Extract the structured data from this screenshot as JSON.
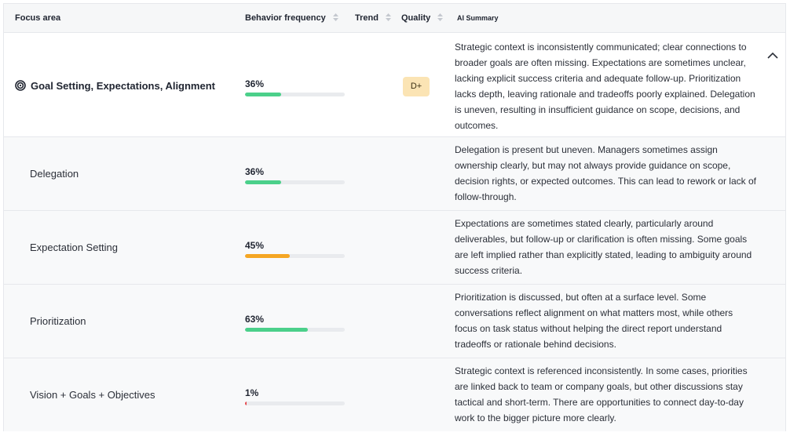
{
  "header": {
    "focus_area": "Focus area",
    "behavior_frequency": "Behavior frequency",
    "trend": "Trend",
    "quality": "Quality",
    "ai_summary": "AI Summary"
  },
  "colors": {
    "green": "#4bd08a",
    "orange": "#f5a623",
    "red": "#e5484d",
    "badge_bg": "#fbe4b4"
  },
  "rows": [
    {
      "label": "Goal Setting, Expectations, Alignment",
      "icon": "target-icon",
      "frequency": "36%",
      "fraction": 0.36,
      "bar_color": "#4bd08a",
      "quality": "D+",
      "summary": "Strategic context is inconsistently communicated; clear connections to broader goals are often missing. Expectations are sometimes unclear, lacking explicit success criteria and adequate follow-up. Prioritization lacks depth, leaving rationale and tradeoffs poorly explained. Delegation is uneven, resulting in insufficient guidance on scope, decisions, and outcomes."
    },
    {
      "label": "Delegation",
      "frequency": "36%",
      "fraction": 0.36,
      "bar_color": "#4bd08a",
      "summary": "Delegation is present but uneven. Managers sometimes assign ownership clearly, but may not always provide guidance on scope, decision rights, or expected outcomes. This can lead to rework or lack of follow-through."
    },
    {
      "label": "Expectation Setting",
      "frequency": "45%",
      "fraction": 0.45,
      "bar_color": "#f5a623",
      "summary": "Expectations are sometimes stated clearly, particularly around deliverables, but follow-up or clarification is often missing. Some goals are left implied rather than explicitly stated, leading to ambiguity around success criteria."
    },
    {
      "label": "Prioritization",
      "frequency": "63%",
      "fraction": 0.63,
      "bar_color": "#4bd08a",
      "summary": "Prioritization is discussed, but often at a surface level. Some conversations reflect alignment on what matters most, while others focus on task status without helping the direct report understand tradeoffs or rationale behind decisions."
    },
    {
      "label": "Vision + Goals + Objectives",
      "frequency": "1%",
      "fraction": 0.01,
      "bar_color": "#e5484d",
      "summary": "Strategic context is referenced inconsistently. In some cases, priorities are linked back to team or company goals, but other discussions stay tactical and short-term. There are opportunities to connect day-to-day work to the bigger picture more clearly."
    }
  ]
}
